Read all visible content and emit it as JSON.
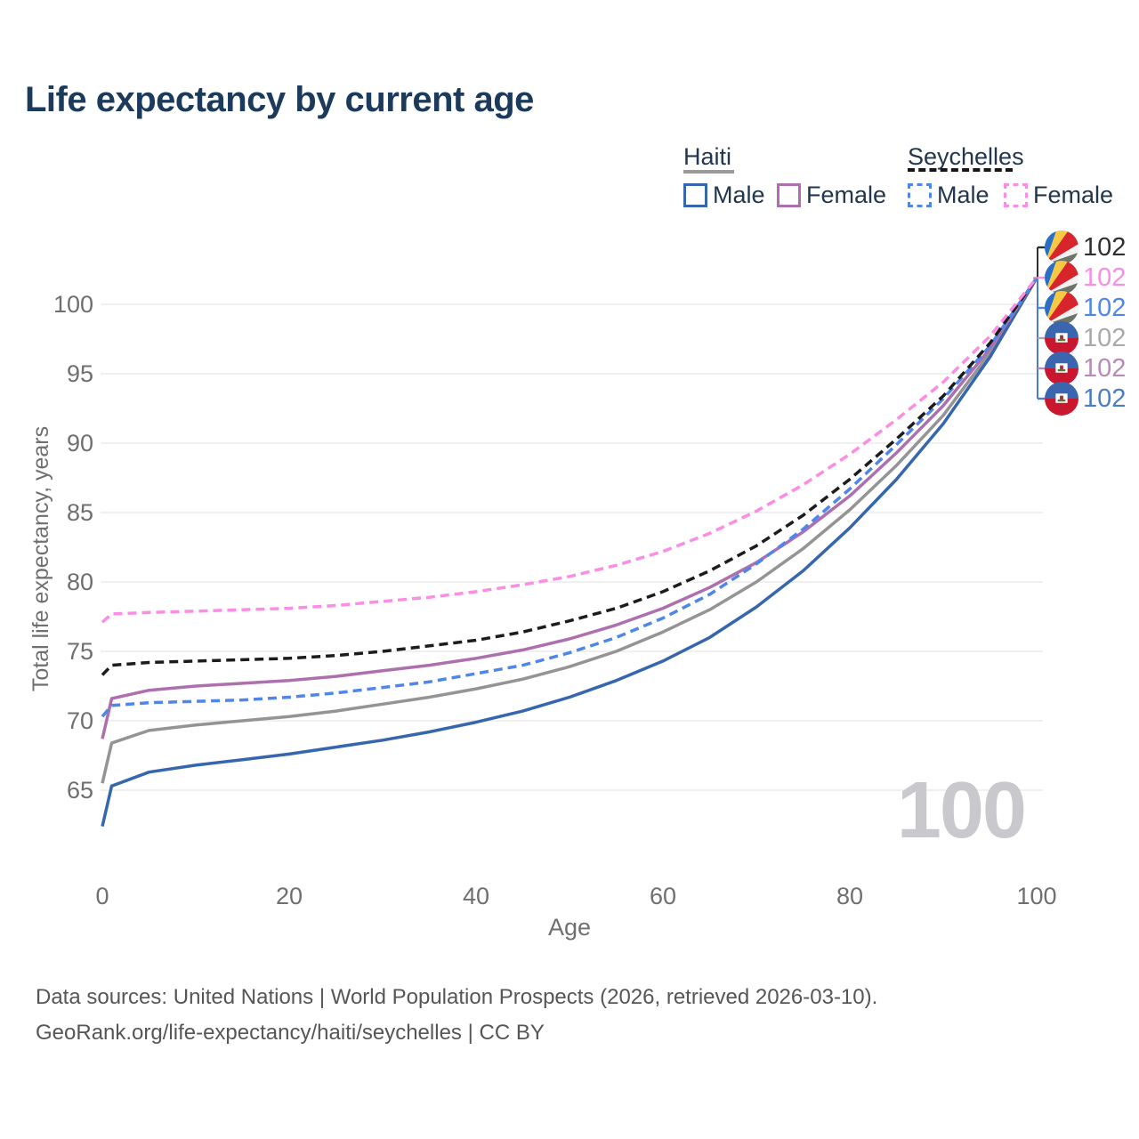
{
  "title": "Life expectancy by current age",
  "legend": {
    "groups": [
      {
        "label": "Haiti",
        "line_style": "solid",
        "underline_color": "#9a9a9a"
      },
      {
        "label": "Seychelles",
        "line_style": "dashed",
        "underline_color": "#161616"
      }
    ],
    "items": [
      {
        "label": "Male",
        "group": "Haiti",
        "color": "#3566ae",
        "style": "solid"
      },
      {
        "label": "Female",
        "group": "Haiti",
        "color": "#ae6fae",
        "style": "solid"
      },
      {
        "label": "Male",
        "group": "Seychelles",
        "color": "#4f86ec",
        "style": "dashed"
      },
      {
        "label": "Female",
        "group": "Seychelles",
        "color": "#fb8de4",
        "style": "dashed"
      }
    ]
  },
  "watermark": "100",
  "end_labels": [
    {
      "value": "102",
      "series": "Seychelles both sexes",
      "flag": "seychelles",
      "color": "#2f2f2f"
    },
    {
      "value": "102",
      "series": "Seychelles female",
      "flag": "seychelles",
      "color": "#fb8de4"
    },
    {
      "value": "102",
      "series": "Seychelles male",
      "flag": "seychelles",
      "color": "#4f86ec"
    },
    {
      "value": "102",
      "series": "Haiti both sexes",
      "flag": "haiti",
      "color": "#a9a9a9"
    },
    {
      "value": "102",
      "series": "Haiti female",
      "flag": "haiti",
      "color": "#b78ab8"
    },
    {
      "value": "102",
      "series": "Haiti male",
      "flag": "haiti",
      "color": "#4a7cc8"
    }
  ],
  "footer": {
    "line1": "Data sources: United Nations | World Population Prospects (2026, retrieved 2026-03-10).",
    "line2": "GeoRank.org/life-expectancy/haiti/seychelles | CC BY"
  },
  "chart_data": {
    "type": "line",
    "title": "Life expectancy by current age",
    "xlabel": "Age",
    "ylabel": "Total life expectancy, years",
    "x_ticks": [
      0,
      20,
      40,
      60,
      80,
      100
    ],
    "y_ticks": [
      65,
      70,
      75,
      80,
      85,
      90,
      95,
      100
    ],
    "xlim": [
      0,
      100
    ],
    "ylim": [
      61.5,
      103.5
    ],
    "grid": "horizontal",
    "legend_position": "top-right",
    "ages": [
      0,
      1,
      5,
      10,
      15,
      20,
      25,
      30,
      35,
      40,
      45,
      50,
      55,
      60,
      65,
      70,
      75,
      80,
      85,
      90,
      95,
      100
    ],
    "series": [
      {
        "name": "Haiti both sexes",
        "color": "#949494",
        "dash": "solid",
        "values": [
          65.5,
          68.4,
          69.3,
          69.7,
          70.0,
          70.3,
          70.7,
          71.2,
          71.7,
          72.3,
          73.0,
          73.9,
          75.0,
          76.4,
          78.0,
          80.0,
          82.4,
          85.2,
          88.4,
          92.0,
          96.5,
          101.9
        ]
      },
      {
        "name": "Haiti male",
        "color": "#3566ae",
        "dash": "solid",
        "values": [
          62.4,
          65.3,
          66.3,
          66.8,
          67.2,
          67.6,
          68.1,
          68.6,
          69.2,
          69.9,
          70.7,
          71.7,
          72.9,
          74.3,
          76.0,
          78.2,
          80.8,
          83.9,
          87.4,
          91.4,
          96.2,
          101.9
        ]
      },
      {
        "name": "Haiti female",
        "color": "#ae6fae",
        "dash": "solid",
        "values": [
          68.7,
          71.6,
          72.2,
          72.5,
          72.7,
          72.9,
          73.2,
          73.6,
          74.0,
          74.5,
          75.1,
          75.9,
          76.9,
          78.1,
          79.6,
          81.4,
          83.6,
          86.2,
          89.3,
          92.7,
          96.8,
          101.9
        ]
      },
      {
        "name": "Seychelles male",
        "color": "#4f86ec",
        "dash": "dashed",
        "values": [
          70.3,
          71.1,
          71.3,
          71.4,
          71.5,
          71.7,
          72.0,
          72.4,
          72.8,
          73.4,
          74.0,
          74.9,
          76.0,
          77.4,
          79.1,
          81.3,
          83.8,
          86.7,
          89.9,
          93.2,
          97.0,
          101.9
        ]
      },
      {
        "name": "Seychelles both sexes",
        "color": "#1c1c1c",
        "dash": "dashed",
        "values": [
          73.3,
          74.0,
          74.2,
          74.3,
          74.4,
          74.5,
          74.7,
          75.0,
          75.4,
          75.8,
          76.4,
          77.2,
          78.1,
          79.3,
          80.8,
          82.6,
          84.8,
          87.4,
          90.3,
          93.4,
          97.2,
          101.9
        ]
      },
      {
        "name": "Seychelles female",
        "color": "#fb8de4",
        "dash": "dashed",
        "values": [
          77.1,
          77.7,
          77.8,
          77.9,
          78.0,
          78.1,
          78.3,
          78.6,
          78.9,
          79.3,
          79.8,
          80.4,
          81.2,
          82.2,
          83.5,
          85.1,
          87.0,
          89.2,
          91.7,
          94.4,
          97.7,
          101.9
        ]
      }
    ]
  }
}
